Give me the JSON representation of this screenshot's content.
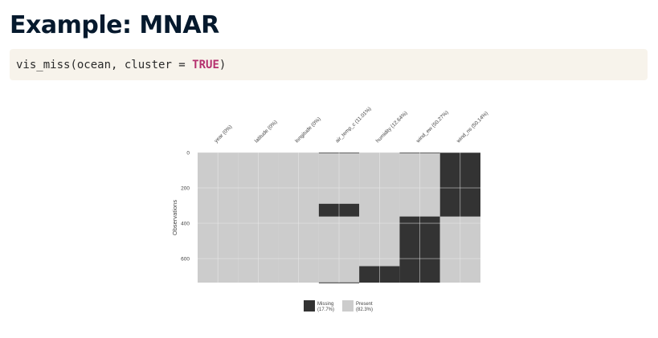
{
  "title": "Example: MNAR",
  "code": {
    "function": "vis_miss",
    "open_paren": "(",
    "args": "ocean, cluster = ",
    "keyword": "TRUE",
    "close_paren": ")"
  },
  "chart_data": {
    "type": "heatmap",
    "columns": [
      {
        "label": "year (0%)",
        "missing_ranges": []
      },
      {
        "label": "latitude (0%)",
        "missing_ranges": []
      },
      {
        "label": "longitude (0%)",
        "missing_ranges": []
      },
      {
        "label": "air_temp_c (11.01%)",
        "missing_ranges": [
          [
            0,
            1
          ],
          [
            290,
            362
          ],
          [
            735,
            736
          ]
        ]
      },
      {
        "label": "humidity (12.64%)",
        "missing_ranges": [
          [
            643,
            736
          ]
        ]
      },
      {
        "label": "wind_ew (50.27%)",
        "missing_ranges": [
          [
            0,
            1
          ],
          [
            362,
            736
          ]
        ]
      },
      {
        "label": "wind_ns (50.14%)",
        "missing_ranges": [
          [
            0,
            362
          ]
        ]
      }
    ],
    "n_observations": 736,
    "y_ticks": [
      0,
      200,
      400,
      600
    ],
    "ylabel": "Observations",
    "ylim": [
      0,
      736
    ],
    "legend": [
      {
        "name": "Missing",
        "percent": "(17.7%)",
        "color": "#333333"
      },
      {
        "name": "Present",
        "percent": "(82.3%)",
        "color": "#cccccc"
      }
    ],
    "legend_position": "bottom",
    "grid": true
  }
}
